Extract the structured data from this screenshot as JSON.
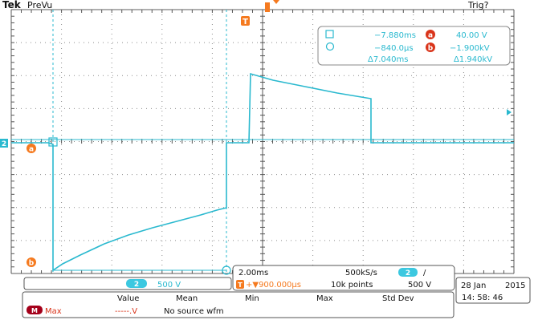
{
  "header": {
    "brand": "Tek",
    "mode": "PreVu",
    "trigger_status": "Trig?",
    "trigger_marker": "T"
  },
  "cursor_readout": {
    "row1_time": "−7.880ms",
    "row1_badge": "a",
    "row1_value": "40.00 V",
    "row2_time": "−840.0μs",
    "row2_badge": "b",
    "row2_value": "−1.900kV",
    "delta_time": "Δ7.040ms",
    "delta_value": "Δ1.940kV"
  },
  "channel_marker": "2",
  "cursor_markers": {
    "a": "a",
    "b": "b"
  },
  "status_bar": {
    "channel_badge": "2",
    "channel_scale": "500 V",
    "timebase": "2.00ms",
    "sample_rate": "500kS/s",
    "trig_channel": "2",
    "trig_slope": "/",
    "trig_position_icon": "T",
    "trig_position": "+▼900.000μs",
    "record_length": "10k points",
    "trig_level": "500 V",
    "date": "28 Jan",
    "year": "2015",
    "time": "14: 58: 46"
  },
  "measurement_table": {
    "headers": [
      "Value",
      "Mean",
      "Min",
      "Max",
      "Std Dev"
    ],
    "row": {
      "badge": "M",
      "name": "Max",
      "value": "-----.V",
      "note": "No source wfm"
    }
  },
  "colors": {
    "trace": "#2ab9cf",
    "orange": "#f57a1f",
    "badge_red": "#d9341a",
    "grid": "#5c5c5c",
    "frame": "#333333",
    "channel_badge_bg": "#3cc8e0"
  }
}
